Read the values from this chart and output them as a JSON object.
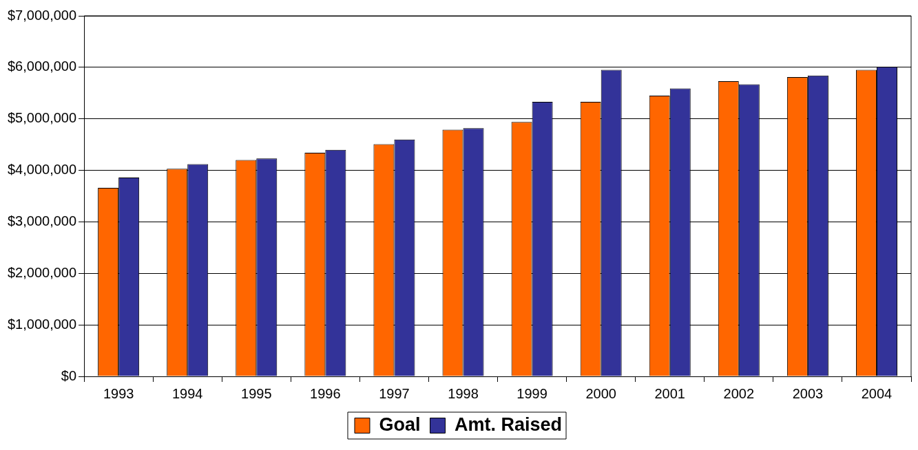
{
  "chart_data": {
    "type": "bar",
    "categories": [
      "1993",
      "1994",
      "1995",
      "1996",
      "1997",
      "1998",
      "1999",
      "2000",
      "2001",
      "2002",
      "2003",
      "2004"
    ],
    "series": [
      {
        "name": "Goal",
        "color": "#ff6600",
        "values": [
          3660000,
          4030000,
          4200000,
          4340000,
          4510000,
          4790000,
          4940000,
          5330000,
          5450000,
          5730000,
          5810000,
          5950000
        ]
      },
      {
        "name": "Amt. Raised",
        "color": "#333399",
        "values": [
          3860000,
          4120000,
          4230000,
          4400000,
          4600000,
          4820000,
          5330000,
          5950000,
          5590000,
          5670000,
          5840000,
          6010000
        ]
      }
    ],
    "ylim": [
      0,
      7000000
    ],
    "yticks": [
      {
        "value": 0,
        "label": "$0"
      },
      {
        "value": 1000000,
        "label": "$1,000,000"
      },
      {
        "value": 2000000,
        "label": "$2,000,000"
      },
      {
        "value": 3000000,
        "label": "$3,000,000"
      },
      {
        "value": 4000000,
        "label": "$4,000,000"
      },
      {
        "value": 5000000,
        "label": "$5,000,000"
      },
      {
        "value": 6000000,
        "label": "$6,000,000"
      },
      {
        "value": 7000000,
        "label": "$7,000,000"
      }
    ],
    "grid": "y",
    "legend": "bottom"
  }
}
